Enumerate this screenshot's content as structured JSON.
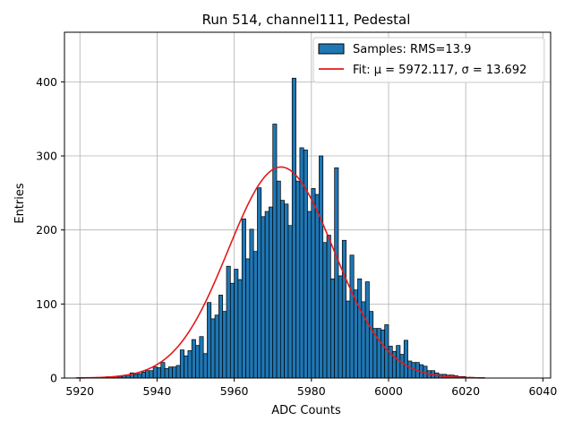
{
  "chart_data": {
    "type": "bar",
    "title": "Run 514, channel111, Pedestal",
    "xlabel": "ADC Counts",
    "ylabel": "Entries",
    "xlim": [
      5916,
      6042
    ],
    "ylim": [
      0,
      467
    ],
    "x_ticks": [
      5920,
      5940,
      5960,
      5980,
      6000,
      6020,
      6040
    ],
    "y_ticks": [
      0,
      100,
      200,
      300,
      400
    ],
    "grid": true,
    "legend_position": "top-right",
    "legend": {
      "samples_label": "Samples: RMS=13.9",
      "fit_label": "Fit: μ = 5972.117, σ = 13.692"
    },
    "colors": {
      "bar_fill": "#1f77b4",
      "bar_edge": "#000000",
      "fit_line": "#e31a1c"
    },
    "histogram": {
      "bin_start": 5920,
      "bin_width": 1,
      "counts": [
        0,
        0,
        0,
        0,
        0,
        0,
        0,
        2,
        2,
        2,
        2,
        3,
        4,
        7,
        5,
        6,
        8,
        10,
        10,
        15,
        14,
        21,
        13,
        15,
        15,
        17,
        38,
        30,
        37,
        52,
        44,
        56,
        33,
        102,
        80,
        85,
        112,
        90,
        151,
        128,
        147,
        133,
        215,
        161,
        201,
        171,
        257,
        218,
        225,
        231,
        343,
        266,
        240,
        235,
        206,
        405,
        266,
        311,
        308,
        225,
        256,
        248,
        300,
        183,
        193,
        134,
        284,
        138,
        186,
        104,
        166,
        119,
        134,
        103,
        130,
        90,
        67,
        67,
        65,
        72,
        43,
        36,
        44,
        32,
        51,
        23,
        21,
        21,
        18,
        16,
        10,
        10,
        7,
        5,
        5,
        4,
        4,
        3,
        2,
        2,
        1,
        1,
        0,
        0,
        0
      ]
    },
    "fit": {
      "type": "gaussian",
      "mu": 5972.117,
      "sigma": 13.692,
      "amplitude": 285,
      "x_range": [
        5919,
        6025
      ]
    }
  }
}
